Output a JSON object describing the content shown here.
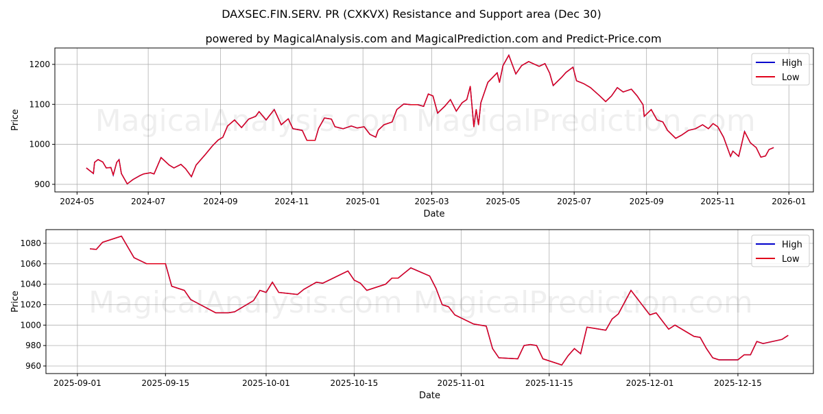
{
  "title": "DAXSEC.FIN.SERV. PR (CXKVX) Resistance and Support area (Dec 30)",
  "subtitle": "powered by MagicalAnalysis.com and MagicalPrediction.com and Predict-Price.com",
  "watermarks": [
    "MagicalAnalysis.com",
    "MagicalPrediction.com"
  ],
  "colors": {
    "high": "#0000cc",
    "low": "#e0001a"
  },
  "chart_data": [
    {
      "type": "line",
      "xlabel": "Date",
      "ylabel": "Price",
      "xlim": [
        "2024-04-12",
        "2026-01-22"
      ],
      "ylim": [
        881,
        1241
      ],
      "xticks": [
        "2024-05",
        "2024-07",
        "2024-09",
        "2024-11",
        "2025-01",
        "2025-03",
        "2025-05",
        "2025-07",
        "2025-09",
        "2025-11",
        "2026-01"
      ],
      "yticks": [
        900,
        1000,
        1100,
        1200
      ],
      "grid": true,
      "legend": {
        "placement": "top-right",
        "entries": [
          "High",
          "Low"
        ]
      },
      "series": [
        {
          "name": "High",
          "same_as": "Low"
        },
        {
          "name": "Low",
          "x": [
            "2024-05-09",
            "2024-05-15",
            "2024-05-16",
            "2024-05-19",
            "2024-05-23",
            "2024-05-26",
            "2024-05-30",
            "2024-06-01",
            "2024-06-04",
            "2024-06-06",
            "2024-06-08",
            "2024-06-13",
            "2024-06-18",
            "2024-06-24",
            "2024-06-27",
            "2024-07-03",
            "2024-07-06",
            "2024-07-12",
            "2024-07-19",
            "2024-07-23",
            "2024-07-29",
            "2024-08-02",
            "2024-08-07",
            "2024-08-11",
            "2024-08-19",
            "2024-08-25",
            "2024-08-30",
            "2024-09-03",
            "2024-09-07",
            "2024-09-13",
            "2024-09-19",
            "2024-09-25",
            "2024-10-01",
            "2024-10-04",
            "2024-10-10",
            "2024-10-17",
            "2024-10-23",
            "2024-10-29",
            "2024-11-02",
            "2024-11-10",
            "2024-11-14",
            "2024-11-21",
            "2024-11-24",
            "2024-11-29",
            "2024-12-05",
            "2024-12-08",
            "2024-12-15",
            "2024-12-22",
            "2024-12-27",
            "2025-01-02",
            "2025-01-07",
            "2025-01-12",
            "2025-01-14",
            "2025-01-19",
            "2025-01-26",
            "2025-01-30",
            "2025-02-05",
            "2025-02-11",
            "2025-02-17",
            "2025-02-22",
            "2025-02-26",
            "2025-03-02",
            "2025-03-06",
            "2025-03-12",
            "2025-03-17",
            "2025-03-22",
            "2025-03-27",
            "2025-03-31",
            "2025-04-03",
            "2025-04-06",
            "2025-04-08",
            "2025-04-10",
            "2025-04-12",
            "2025-04-18",
            "2025-04-26",
            "2025-04-28",
            "2025-05-01",
            "2025-05-06",
            "2025-05-08",
            "2025-05-12",
            "2025-05-17",
            "2025-05-23",
            "2025-06-01",
            "2025-06-06",
            "2025-06-10",
            "2025-06-13",
            "2025-06-20",
            "2025-06-24",
            "2025-06-30",
            "2025-07-03",
            "2025-07-09",
            "2025-07-15",
            "2025-07-23",
            "2025-07-28",
            "2025-08-02",
            "2025-08-07",
            "2025-08-12",
            "2025-08-19",
            "2025-08-24",
            "2025-08-29",
            "2025-08-30",
            "2025-09-05",
            "2025-09-10",
            "2025-09-15",
            "2025-09-19",
            "2025-09-26",
            "2025-10-01",
            "2025-10-07",
            "2025-10-13",
            "2025-10-19",
            "2025-10-24",
            "2025-10-28",
            "2025-11-01",
            "2025-11-06",
            "2025-11-12",
            "2025-11-14",
            "2025-11-19",
            "2025-11-21",
            "2025-11-24",
            "2025-11-29",
            "2025-12-04",
            "2025-12-08",
            "2025-12-12",
            "2025-12-15",
            "2025-12-19"
          ],
          "y": [
            941,
            927,
            955,
            962,
            956,
            941,
            942,
            923,
            955,
            962,
            927,
            901,
            912,
            922,
            926,
            929,
            926,
            967,
            948,
            941,
            950,
            939,
            919,
            948,
            975,
            996,
            1011,
            1018,
            1046,
            1061,
            1042,
            1063,
            1070,
            1082,
            1061,
            1087,
            1049,
            1064,
            1039,
            1035,
            1010,
            1010,
            1040,
            1066,
            1063,
            1044,
            1039,
            1046,
            1041,
            1044,
            1025,
            1018,
            1035,
            1049,
            1056,
            1087,
            1101,
            1099,
            1099,
            1095,
            1126,
            1121,
            1078,
            1095,
            1112,
            1083,
            1104,
            1112,
            1145,
            1044,
            1087,
            1049,
            1104,
            1155,
            1179,
            1155,
            1197,
            1223,
            1207,
            1176,
            1197,
            1207,
            1195,
            1202,
            1178,
            1147,
            1167,
            1180,
            1193,
            1159,
            1152,
            1142,
            1121,
            1107,
            1121,
            1142,
            1131,
            1138,
            1121,
            1099,
            1070,
            1087,
            1061,
            1056,
            1035,
            1015,
            1023,
            1035,
            1039,
            1049,
            1039,
            1052,
            1044,
            1018,
            970,
            983,
            970,
            994,
            1032,
            1004,
            992,
            968,
            971,
            987,
            992
          ]
        }
      ]
    },
    {
      "type": "line",
      "xlabel": "Date",
      "ylabel": "Price",
      "xlim": [
        "2025-08-27",
        "2025-12-27"
      ],
      "ylim": [
        952.6,
        1093.4
      ],
      "xticks": [
        "2025-09-01",
        "2025-09-15",
        "2025-10-01",
        "2025-10-15",
        "2025-11-01",
        "2025-11-15",
        "2025-12-01",
        "2025-12-15"
      ],
      "yticks": [
        960,
        980,
        1000,
        1020,
        1040,
        1060,
        1080
      ],
      "grid": true,
      "legend": {
        "placement": "top-right",
        "entries": [
          "High",
          "Low"
        ]
      },
      "series": [
        {
          "name": "High",
          "same_as": "Low"
        },
        {
          "name": "Low",
          "x": [
            "2025-09-03",
            "2025-09-04",
            "2025-09-05",
            "2025-09-08",
            "2025-09-10",
            "2025-09-12",
            "2025-09-15",
            "2025-09-16",
            "2025-09-18",
            "2025-09-19",
            "2025-09-23",
            "2025-09-25",
            "2025-09-26",
            "2025-09-29",
            "2025-09-30",
            "2025-10-01",
            "2025-10-02",
            "2025-10-03",
            "2025-10-06",
            "2025-10-07",
            "2025-10-09",
            "2025-10-10",
            "2025-10-14",
            "2025-10-15",
            "2025-10-16",
            "2025-10-17",
            "2025-10-20",
            "2025-10-21",
            "2025-10-22",
            "2025-10-23",
            "2025-10-24",
            "2025-10-27",
            "2025-10-28",
            "2025-10-29",
            "2025-10-30",
            "2025-10-31",
            "2025-11-03",
            "2025-11-05",
            "2025-11-06",
            "2025-11-07",
            "2025-11-10",
            "2025-11-11",
            "2025-11-12",
            "2025-11-13",
            "2025-11-14",
            "2025-11-17",
            "2025-11-18",
            "2025-11-19",
            "2025-11-20",
            "2025-11-21",
            "2025-11-24",
            "2025-11-25",
            "2025-11-26",
            "2025-11-28",
            "2025-12-01",
            "2025-12-02",
            "2025-12-04",
            "2025-12-05",
            "2025-12-08",
            "2025-12-09",
            "2025-12-10",
            "2025-12-11",
            "2025-12-12",
            "2025-12-15",
            "2025-12-16",
            "2025-12-17",
            "2025-12-18",
            "2025-12-19",
            "2025-12-22",
            "2025-12-23"
          ],
          "y": [
            1074.6,
            1074,
            1081,
            1087,
            1066,
            1060,
            1060,
            1038,
            1034,
            1025,
            1012,
            1012,
            1013,
            1024,
            1034,
            1032,
            1042,
            1032,
            1030,
            1035,
            1042,
            1041,
            1053,
            1044,
            1041,
            1034,
            1040,
            1046,
            1046,
            1051,
            1056,
            1048,
            1036,
            1020,
            1018,
            1010,
            1001,
            999,
            977,
            968,
            967,
            980,
            981,
            980,
            967,
            961,
            970,
            977,
            972,
            998,
            995,
            1006,
            1011,
            1034,
            1010,
            1012,
            996,
            1000,
            989,
            988,
            977,
            968,
            966,
            966,
            971,
            971,
            984,
            982,
            986,
            990
          ]
        }
      ]
    }
  ]
}
